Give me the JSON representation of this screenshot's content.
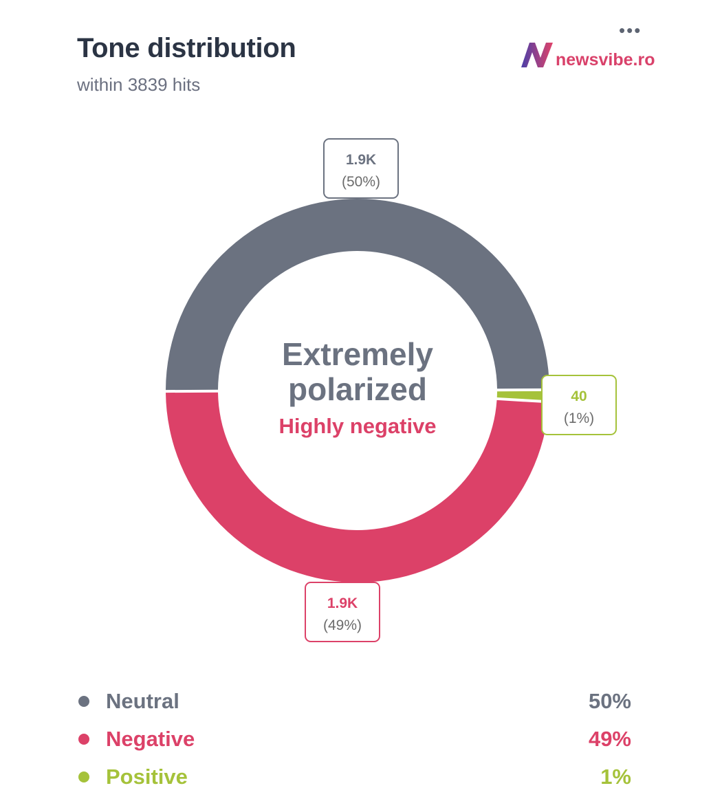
{
  "header": {
    "title": "Tone distribution",
    "subtitle": "within 3839 hits",
    "menu_label": "•••"
  },
  "logo": {
    "text": "newsvibe.ro",
    "icon": "newsvibe-n-logo-icon"
  },
  "colors": {
    "neutral": "#6b7280",
    "negative": "#dc4168",
    "positive": "#a5c23a",
    "title": "#2b3444"
  },
  "chart_data": {
    "type": "pie",
    "variant": "donut",
    "total_hits": 3839,
    "center": {
      "main_line1": "Extremely",
      "main_line2": "polarized",
      "sub": "Highly negative"
    },
    "slices": [
      {
        "name": "Neutral",
        "value_label": "1.9K",
        "percent_label": "(50%)",
        "percent": 50,
        "legend_value": "50%",
        "color_key": "neutral"
      },
      {
        "name": "Positive",
        "value_label": "40",
        "percent_label": "(1%)",
        "percent": 1,
        "legend_value": "1%",
        "color_key": "positive"
      },
      {
        "name": "Negative",
        "value_label": "1.9K",
        "percent_label": "(49%)",
        "percent": 49,
        "legend_value": "49%",
        "color_key": "negative"
      }
    ]
  },
  "legend": [
    {
      "label": "Neutral",
      "value": "50%",
      "color_key": "neutral"
    },
    {
      "label": "Negative",
      "value": "49%",
      "color_key": "negative"
    },
    {
      "label": "Positive",
      "value": "1%",
      "color_key": "positive"
    }
  ]
}
